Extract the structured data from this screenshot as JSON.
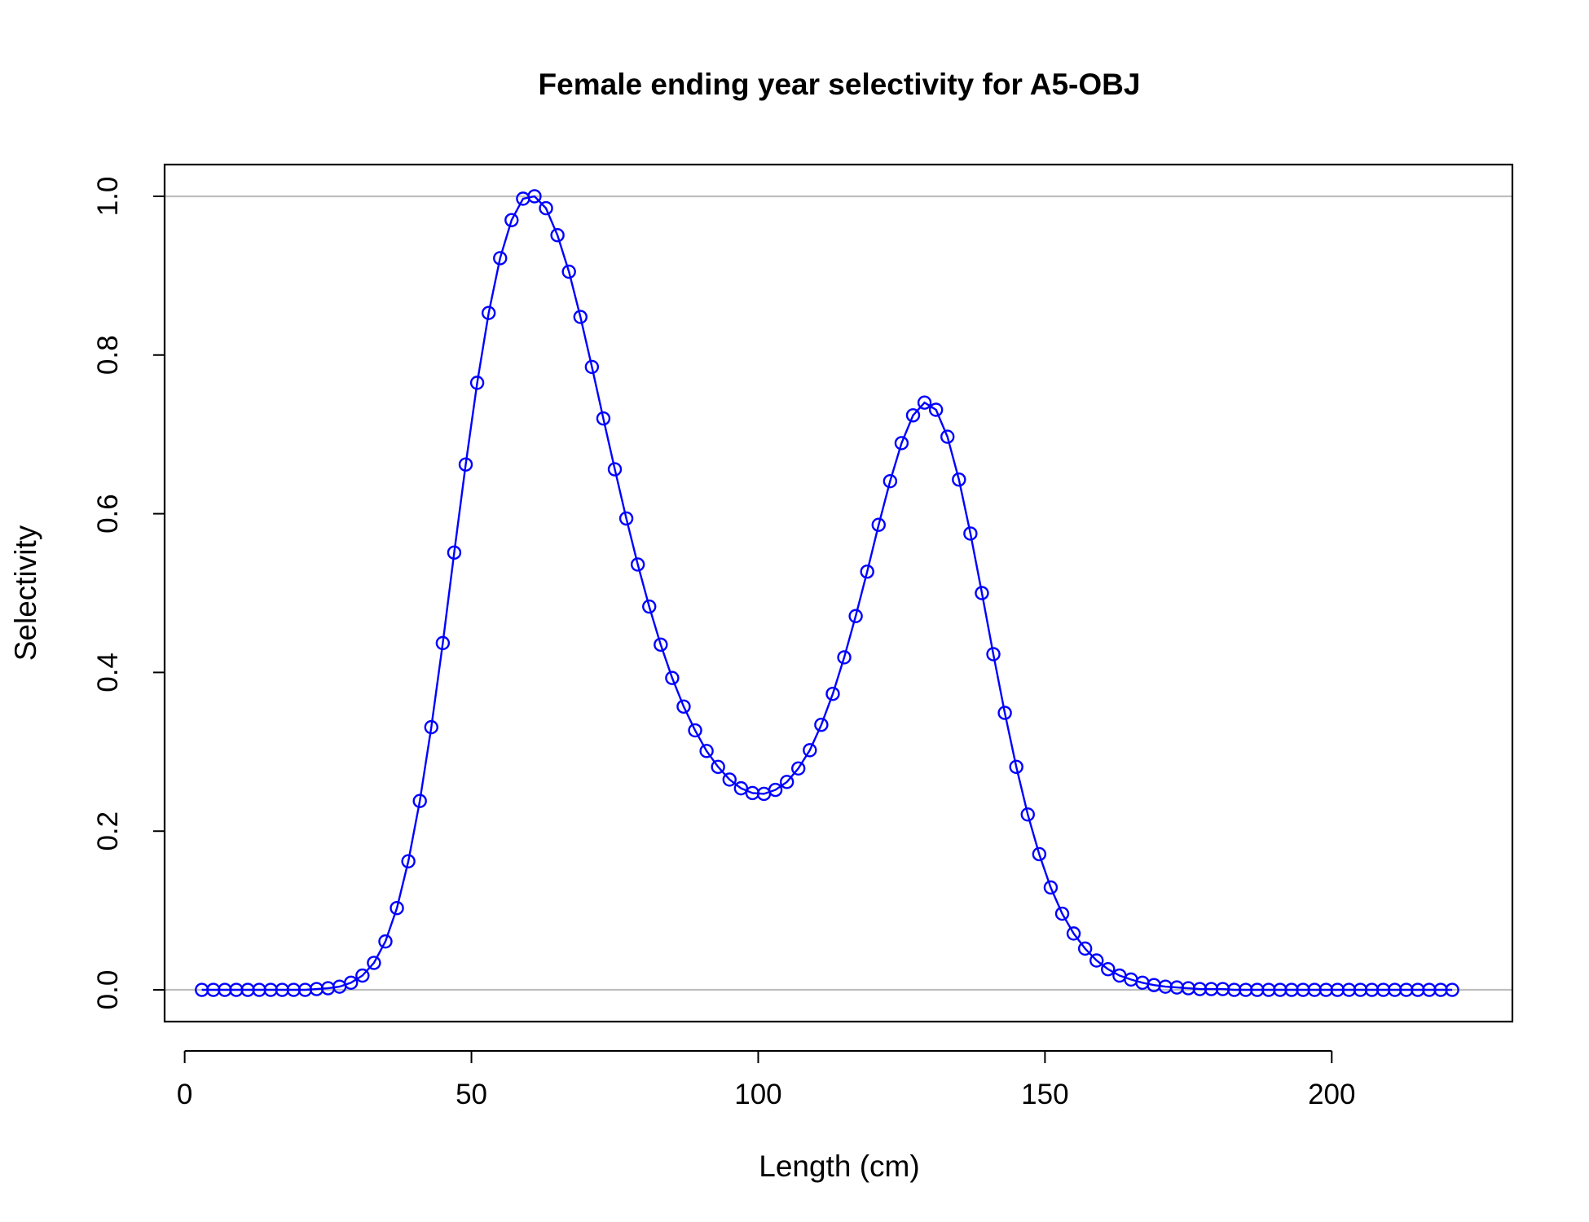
{
  "chart_data": {
    "type": "line",
    "title": "Female ending year selectivity for A5-OBJ",
    "xlabel": "Length (cm)",
    "ylabel": "Selectivity",
    "xlim": [
      -3.5,
      231.5
    ],
    "ylim": [
      -0.04,
      1.04
    ],
    "xticks": [
      0,
      50,
      100,
      150,
      200
    ],
    "xtick_labels": [
      "0",
      "50",
      "100",
      "150",
      "200"
    ],
    "yticks": [
      0.0,
      0.2,
      0.4,
      0.6,
      0.8,
      1.0
    ],
    "ytick_labels": [
      "0.0",
      "0.2",
      "0.4",
      "0.6",
      "0.8",
      "1.0"
    ],
    "reference_lines": [
      0,
      1
    ],
    "reference_line_color": "#bebebe",
    "series_color": "#0000ff",
    "grid": false,
    "series": [
      {
        "x": [
          3,
          5,
          7,
          9,
          11,
          13,
          15,
          17,
          19,
          21,
          23,
          25,
          27,
          29,
          31,
          33,
          35,
          37,
          39,
          41,
          43,
          45,
          47,
          49,
          51,
          53,
          55,
          57,
          59,
          61,
          63,
          65,
          67,
          69,
          71,
          73,
          75,
          77,
          79,
          81,
          83,
          85,
          87,
          89,
          91,
          93,
          95,
          97,
          99,
          101,
          103,
          105,
          107,
          109,
          111,
          113,
          115,
          117,
          119,
          121,
          123,
          125,
          127,
          129,
          131,
          133,
          135,
          137,
          139,
          141,
          143,
          145,
          147,
          149,
          151,
          153,
          155,
          157,
          159,
          161,
          163,
          165,
          167,
          169,
          171,
          173,
          175,
          177,
          179,
          181,
          183,
          185,
          187,
          189,
          191,
          193,
          195,
          197,
          199,
          201,
          203,
          205,
          207,
          209,
          211,
          213,
          215,
          217,
          219,
          221
        ],
        "values": [
          0,
          0,
          0,
          0,
          0,
          0,
          0,
          0,
          0,
          0,
          0.001,
          0.002,
          0.004,
          0.009,
          0.018,
          0.034,
          0.061,
          0.103,
          0.162,
          0.238,
          0.331,
          0.437,
          0.551,
          0.662,
          0.765,
          0.853,
          0.922,
          0.97,
          0.997,
          1.0,
          0.985,
          0.951,
          0.905,
          0.848,
          0.785,
          0.72,
          0.656,
          0.594,
          0.536,
          0.483,
          0.435,
          0.393,
          0.357,
          0.327,
          0.301,
          0.281,
          0.265,
          0.254,
          0.248,
          0.247,
          0.252,
          0.262,
          0.279,
          0.302,
          0.334,
          0.373,
          0.419,
          0.471,
          0.527,
          0.586,
          0.641,
          0.689,
          0.724,
          0.74,
          0.731,
          0.697,
          0.643,
          0.575,
          0.5,
          0.423,
          0.349,
          0.281,
          0.221,
          0.171,
          0.129,
          0.096,
          0.071,
          0.052,
          0.037,
          0.026,
          0.018,
          0.013,
          0.009,
          0.006,
          0.004,
          0.003,
          0.002,
          0.001,
          0.001,
          0.001,
          0,
          0,
          0,
          0,
          0,
          0,
          0,
          0,
          0,
          0,
          0,
          0,
          0,
          0,
          0,
          0,
          0,
          0,
          0,
          0
        ]
      }
    ]
  }
}
